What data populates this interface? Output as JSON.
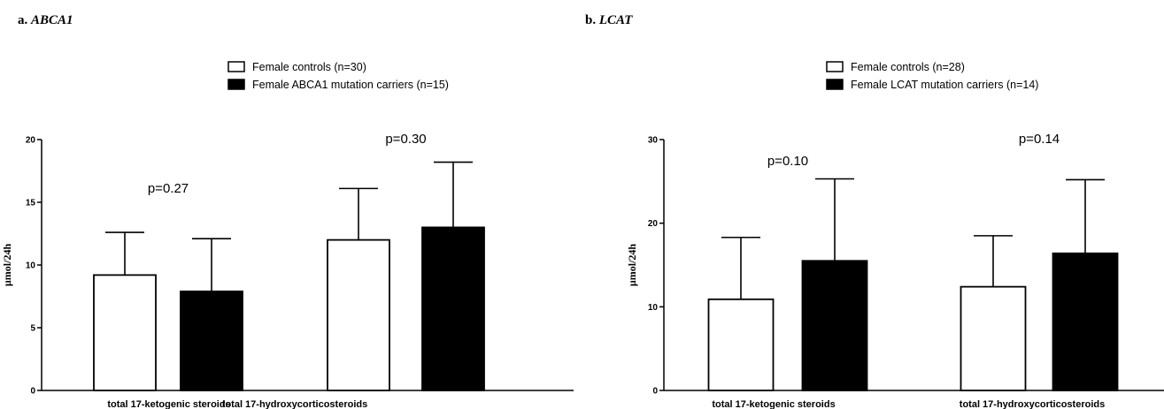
{
  "chart_data": [
    {
      "type": "bar",
      "panel_label": "a.",
      "gene": "ABCA1",
      "ylabel": "µmol/24h",
      "ylim": [
        0,
        20
      ],
      "yticks": [
        "0",
        "5",
        "10",
        "15",
        "20"
      ],
      "categories": [
        "total 17-ketogenic steroids",
        "total 17-hydroxycorticosteroids"
      ],
      "series": [
        {
          "name": "Female controls (n=30)",
          "color": "#ffffff",
          "values": [
            9.2,
            12.0
          ],
          "errors": [
            3.4,
            4.1
          ]
        },
        {
          "name": "Female ABCA1 mutation carriers (n=15)",
          "color": "#000000",
          "values": [
            7.9,
            13.0
          ],
          "errors": [
            4.2,
            5.2
          ]
        }
      ],
      "annotations": [
        "p=0.27",
        "p=0.30"
      ],
      "legend_position": "top-right",
      "grid": false
    },
    {
      "type": "bar",
      "panel_label": "b.",
      "gene": "LCAT",
      "ylabel": "µmol/24h",
      "ylim": [
        0,
        30
      ],
      "yticks": [
        "0",
        "10",
        "20",
        "30"
      ],
      "categories": [
        "total 17-ketogenic steroids",
        "total 17-hydroxycorticosteroids"
      ],
      "series": [
        {
          "name": "Female controls (n=28)",
          "color": "#ffffff",
          "values": [
            10.9,
            12.4
          ],
          "errors": [
            7.4,
            6.1
          ]
        },
        {
          "name": "Female LCAT mutation carriers (n=14)",
          "color": "#000000",
          "values": [
            15.5,
            16.4
          ],
          "errors": [
            9.8,
            8.8
          ]
        }
      ],
      "annotations": [
        "p=0.10",
        "p=0.14"
      ],
      "legend_position": "top-right",
      "grid": false
    }
  ]
}
